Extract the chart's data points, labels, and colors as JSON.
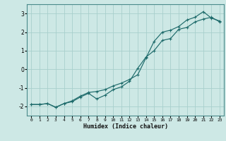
{
  "xlabel": "Humidex (Indice chaleur)",
  "bg_color": "#cde8e5",
  "grid_color": "#a8d0cc",
  "line_color": "#1e6b6b",
  "xlim": [
    -0.5,
    23.5
  ],
  "ylim": [
    -2.5,
    3.5
  ],
  "xticks": [
    0,
    1,
    2,
    3,
    4,
    5,
    6,
    7,
    8,
    9,
    10,
    11,
    12,
    13,
    14,
    15,
    16,
    17,
    18,
    19,
    20,
    21,
    22,
    23
  ],
  "yticks": [
    -2,
    -1,
    0,
    1,
    2,
    3
  ],
  "line1_x": [
    0,
    1,
    2,
    3,
    4,
    5,
    6,
    7,
    8,
    9,
    10,
    11,
    12,
    13,
    14,
    15,
    16,
    17,
    18,
    19,
    20,
    21,
    22,
    23
  ],
  "line1_y": [
    -1.9,
    -1.9,
    -1.85,
    -2.05,
    -1.85,
    -1.7,
    -1.45,
    -1.25,
    -1.2,
    -1.1,
    -0.9,
    -0.75,
    -0.55,
    -0.3,
    0.6,
    1.5,
    2.0,
    2.1,
    2.3,
    2.65,
    2.8,
    3.1,
    2.75,
    2.6
  ],
  "line2_x": [
    0,
    1,
    2,
    3,
    4,
    5,
    6,
    7,
    8,
    9,
    10,
    11,
    12,
    13,
    14,
    15,
    16,
    17,
    18,
    19,
    20,
    21,
    22,
    23
  ],
  "line2_y": [
    -1.9,
    -1.9,
    -1.85,
    -2.05,
    -1.85,
    -1.75,
    -1.5,
    -1.3,
    -1.6,
    -1.4,
    -1.1,
    -0.95,
    -0.65,
    0.05,
    0.65,
    1.0,
    1.55,
    1.65,
    2.15,
    2.25,
    2.55,
    2.7,
    2.8,
    2.55
  ]
}
